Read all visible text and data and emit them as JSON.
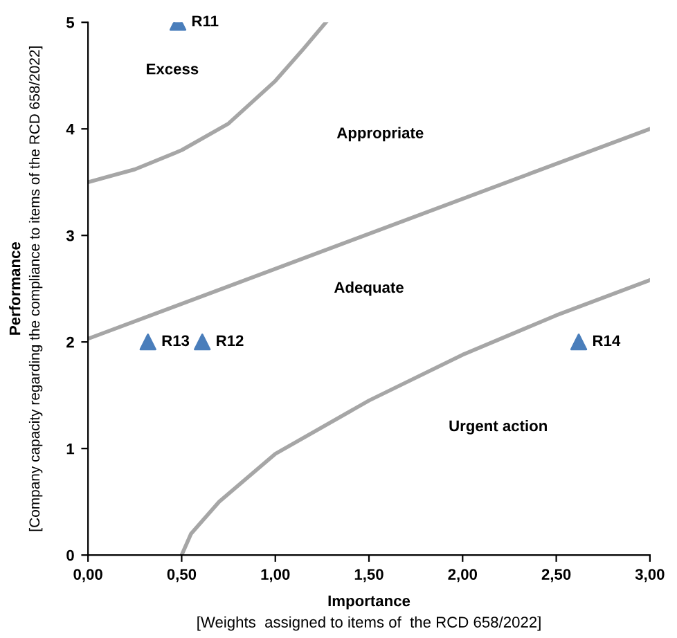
{
  "chart_data": {
    "type": "scatter",
    "xlabel": "Importance\n[Weights  assigned to items of  the RCD 658/2022]",
    "ylabel": "Performance\n[Company capacity regarding the compliance to items of the RCD 658/2022]",
    "xlim": [
      0,
      3
    ],
    "ylim": [
      0,
      5
    ],
    "xticks": [
      {
        "value": 0,
        "label": "0,00"
      },
      {
        "value": 0.5,
        "label": "0,50"
      },
      {
        "value": 1,
        "label": "1,00"
      },
      {
        "value": 1.5,
        "label": "1,50"
      },
      {
        "value": 2,
        "label": "2,00"
      },
      {
        "value": 2.5,
        "label": "2,50"
      },
      {
        "value": 3,
        "label": "3,00"
      }
    ],
    "yticks": [
      0,
      1,
      2,
      3,
      4,
      5
    ],
    "grid": false,
    "legend": false,
    "series": [
      {
        "type": "line",
        "color": "#a6a6a6",
        "x": [
          0,
          0.25,
          0.5,
          0.75,
          1.0,
          1.15,
          1.27
        ],
        "values": [
          3.5,
          3.62,
          3.8,
          4.05,
          4.45,
          4.75,
          5.0
        ]
      },
      {
        "type": "line",
        "color": "#a6a6a6",
        "x": [
          0,
          3
        ],
        "values": [
          2.03,
          4.0
        ]
      },
      {
        "type": "line",
        "color": "#a6a6a6",
        "x": [
          0.5,
          0.55,
          0.7,
          1.0,
          1.5,
          2.0,
          2.5,
          3.0
        ],
        "values": [
          0,
          0.2,
          0.5,
          0.95,
          1.45,
          1.88,
          2.25,
          2.58
        ]
      },
      {
        "color": "#4a7ebb",
        "marker": "triangle",
        "x": [
          0.48,
          0.61,
          0.32,
          2.62
        ],
        "values": [
          5,
          2,
          2,
          2
        ],
        "value_labels": [
          "R11",
          "R12",
          "R13",
          "R14"
        ]
      }
    ],
    "annotations": [
      "Excess",
      "Appropriate",
      "Adequate",
      "Urgent action"
    ]
  }
}
